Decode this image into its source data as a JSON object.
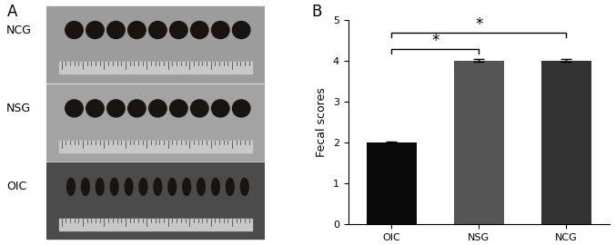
{
  "panel_labels": [
    "A",
    "B"
  ],
  "photo_rows": [
    "NCG",
    "NSG",
    "OIC"
  ],
  "chart_data": {
    "type": "bar",
    "ylabel": "Fecal scores",
    "categories": [
      "OIC",
      "NSG",
      "NCG"
    ],
    "values": [
      2,
      4,
      4
    ],
    "errors": [
      0.03,
      0.03,
      0.03
    ],
    "colors": [
      "#0a0a0a",
      "#555555",
      "#333333"
    ],
    "ylim": [
      0,
      5
    ],
    "yticks": [
      0,
      1,
      2,
      3,
      4,
      5
    ],
    "annotations": [
      {
        "from": "OIC",
        "to": "NSG",
        "text": "*"
      },
      {
        "from": "OIC",
        "to": "NCG",
        "text": "*"
      }
    ]
  }
}
